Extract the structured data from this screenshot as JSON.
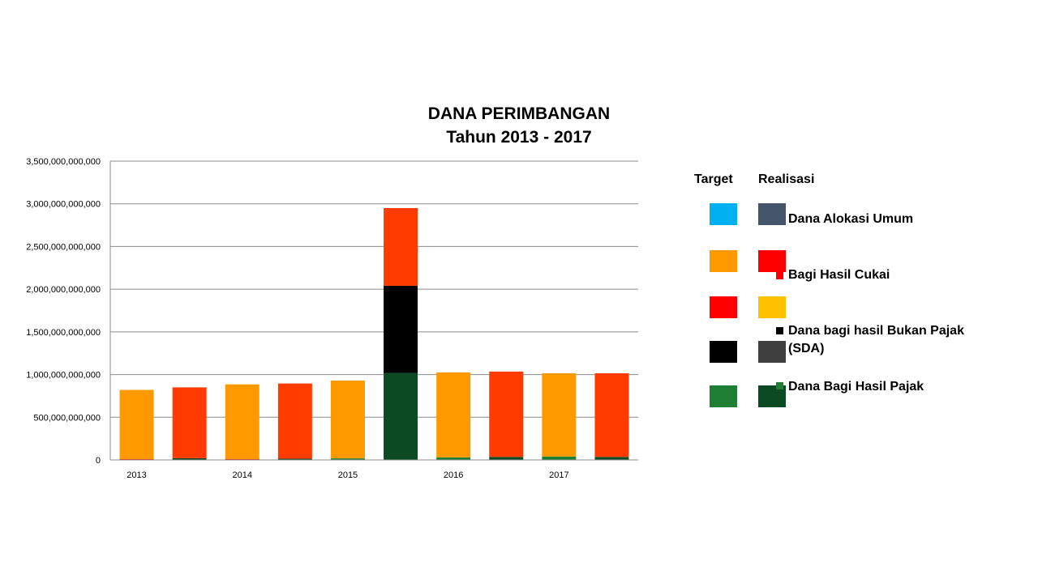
{
  "chart_data": {
    "type": "bar",
    "stacked": true,
    "title": "DANA PERIMBANGAN",
    "subtitle": "Tahun 2013 - 2017",
    "xlabel": "",
    "ylabel": "",
    "ylim": [
      0,
      3500000000000
    ],
    "y_ticks": [
      "3,500,000,000,000",
      "3,000,000,000,000",
      "2,500,000,000,000",
      "2,000,000,000,000",
      "1,500,000,000,000",
      "1,000,000,000,000",
      "500,000,000,000",
      "0"
    ],
    "categories": [
      "2013",
      "2014",
      "2015",
      "2016",
      "2017"
    ],
    "bars": [
      {
        "year": "2013",
        "kind": "Target",
        "segments": [
          {
            "series": "Dana Bagi Hasil Pajak",
            "value": 5000000000,
            "color": "#1E7E34"
          },
          {
            "series": "Dana bagi hasil Bukan Pajak (SDA)",
            "value": 0,
            "color": "#000000"
          },
          {
            "series": "Bagi Hasil Cukai",
            "value": 5000000000,
            "color": "#FF2A00"
          },
          {
            "series": "Dana Alokasi Umum",
            "value": 810000000000,
            "color": "#FF9900"
          }
        ]
      },
      {
        "year": "2013",
        "kind": "Realisasi",
        "segments": [
          {
            "series": "Dana Bagi Hasil Pajak",
            "value": 20000000000,
            "color": "#0B4A22"
          },
          {
            "series": "Dana bagi hasil Bukan Pajak (SDA)",
            "value": 0,
            "color": "#404040"
          },
          {
            "series": "Bagi Hasil Cukai",
            "value": 0,
            "color": "#FFC000"
          },
          {
            "series": "Dana Alokasi Umum",
            "value": 830000000000,
            "color": "#FF3B00"
          }
        ]
      },
      {
        "year": "2014",
        "kind": "Target",
        "segments": [
          {
            "series": "Dana Bagi Hasil Pajak",
            "value": 5000000000,
            "color": "#1E7E34"
          },
          {
            "series": "Dana bagi hasil Bukan Pajak (SDA)",
            "value": 0,
            "color": "#000000"
          },
          {
            "series": "Bagi Hasil Cukai",
            "value": 5000000000,
            "color": "#FF2A00"
          },
          {
            "series": "Dana Alokasi Umum",
            "value": 875000000000,
            "color": "#FF9900"
          }
        ]
      },
      {
        "year": "2014",
        "kind": "Realisasi",
        "segments": [
          {
            "series": "Dana Bagi Hasil Pajak",
            "value": 15000000000,
            "color": "#0B4A22"
          },
          {
            "series": "Dana bagi hasil Bukan Pajak (SDA)",
            "value": 0,
            "color": "#404040"
          },
          {
            "series": "Bagi Hasil Cukai",
            "value": 0,
            "color": "#FFC000"
          },
          {
            "series": "Dana Alokasi Umum",
            "value": 880000000000,
            "color": "#FF3B00"
          }
        ]
      },
      {
        "year": "2015",
        "kind": "Target",
        "segments": [
          {
            "series": "Dana Bagi Hasil Pajak",
            "value": 18000000000,
            "color": "#1E7E34"
          },
          {
            "series": "Dana bagi hasil Bukan Pajak (SDA)",
            "value": 0,
            "color": "#000000"
          },
          {
            "series": "Bagi Hasil Cukai",
            "value": 0,
            "color": "#FF2A00"
          },
          {
            "series": "Dana Alokasi Umum",
            "value": 912000000000,
            "color": "#FF9900"
          }
        ]
      },
      {
        "year": "2015",
        "kind": "Realisasi",
        "segments": [
          {
            "series": "Dana Bagi Hasil Pajak",
            "value": 1020000000000,
            "color": "#0B4A22"
          },
          {
            "series": "Dana bagi hasil Bukan Pajak (SDA)",
            "value": 1020000000000,
            "color": "#000000"
          },
          {
            "series": "Bagi Hasil Cukai",
            "value": 0,
            "color": "#FFC000"
          },
          {
            "series": "Dana Alokasi Umum",
            "value": 910000000000,
            "color": "#FF3B00"
          }
        ]
      },
      {
        "year": "2016",
        "kind": "Target",
        "segments": [
          {
            "series": "Dana Bagi Hasil Pajak",
            "value": 30000000000,
            "color": "#1E7E34"
          },
          {
            "series": "Dana bagi hasil Bukan Pajak (SDA)",
            "value": 0,
            "color": "#000000"
          },
          {
            "series": "Bagi Hasil Cukai",
            "value": 0,
            "color": "#FF2A00"
          },
          {
            "series": "Dana Alokasi Umum",
            "value": 995000000000,
            "color": "#FF9900"
          }
        ]
      },
      {
        "year": "2016",
        "kind": "Realisasi",
        "segments": [
          {
            "series": "Dana Bagi Hasil Pajak",
            "value": 35000000000,
            "color": "#0B4A22"
          },
          {
            "series": "Dana bagi hasil Bukan Pajak (SDA)",
            "value": 0,
            "color": "#404040"
          },
          {
            "series": "Bagi Hasil Cukai",
            "value": 0,
            "color": "#FFC000"
          },
          {
            "series": "Dana Alokasi Umum",
            "value": 1000000000000,
            "color": "#FF3B00"
          }
        ]
      },
      {
        "year": "2017",
        "kind": "Target",
        "segments": [
          {
            "series": "Dana Bagi Hasil Pajak",
            "value": 40000000000,
            "color": "#1E7E34"
          },
          {
            "series": "Dana bagi hasil Bukan Pajak (SDA)",
            "value": 0,
            "color": "#000000"
          },
          {
            "series": "Bagi Hasil Cukai",
            "value": 0,
            "color": "#FF2A00"
          },
          {
            "series": "Dana Alokasi Umum",
            "value": 975000000000,
            "color": "#FF9900"
          }
        ]
      },
      {
        "year": "2017",
        "kind": "Realisasi",
        "segments": [
          {
            "series": "Dana Bagi Hasil Pajak",
            "value": 35000000000,
            "color": "#0B4A22"
          },
          {
            "series": "Dana bagi hasil Bukan Pajak (SDA)",
            "value": 0,
            "color": "#404040"
          },
          {
            "series": "Bagi Hasil Cukai",
            "value": 0,
            "color": "#FFC000"
          },
          {
            "series": "Dana Alokasi Umum",
            "value": 980000000000,
            "color": "#FF3B00"
          }
        ]
      }
    ],
    "legend": {
      "placement": "right",
      "target_header": "Target",
      "realisasi_header": "Realisasi",
      "entries": [
        {
          "label": "Dana Alokasi Umum",
          "target_color": "#00B0F0",
          "realisasi_color": "#44546A"
        },
        {
          "label": "Bagi Hasil Cukai",
          "target_color": "#FF9900",
          "realisasi_color": "#FF0000"
        },
        {
          "label": "",
          "target_color": "#FF0000",
          "realisasi_color": "#FFC000"
        },
        {
          "label": "Dana bagi hasil Bukan Pajak (SDA)",
          "target_color": "#000000",
          "realisasi_color": "#404040"
        },
        {
          "label": "Dana Bagi Hasil Pajak",
          "target_color": "#1E7E34",
          "realisasi_color": "#0B4A22"
        }
      ]
    },
    "grid": true
  }
}
